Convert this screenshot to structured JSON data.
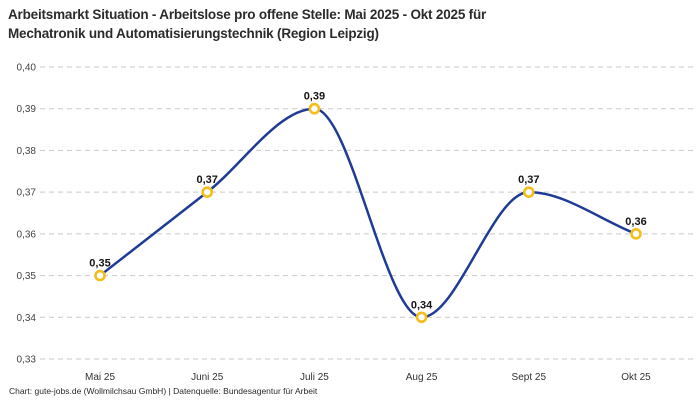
{
  "header": {
    "title_line1": "Arbeitsmarkt Situation - Arbeitslose pro offene Stelle: Mai 2025 - Okt 2025 für",
    "title_line2": "Mechatronik und Automatisierungstechnik (Region Leipzig)"
  },
  "footer": {
    "credit": "Chart: gute-jobs.de (Wollmilchsau GmbH) | Datenquelle: Bundesagentur für Arbeit"
  },
  "chart_data": {
    "type": "line",
    "title": "Arbeitsmarkt Situation - Arbeitslose pro offene Stelle: Mai 2025 - Okt 2025 für Mechatronik und Automatisierungstechnik (Region Leipzig)",
    "categories": [
      "Mai 25",
      "Juni 25",
      "Juli 25",
      "Aug 25",
      "Sept 25",
      "Okt 25"
    ],
    "values": [
      0.35,
      0.37,
      0.39,
      0.34,
      0.37,
      0.36
    ],
    "value_labels": [
      "0,35",
      "0,37",
      "0,39",
      "0,34",
      "0,37",
      "0,36"
    ],
    "xlabel": "",
    "ylabel": "",
    "ylim": [
      0.33,
      0.4
    ],
    "ytick_step": 0.01,
    "ytick_labels": [
      "0,33",
      "0,34",
      "0,35",
      "0,36",
      "0,37",
      "0,38",
      "0,39",
      "0,40"
    ],
    "grid": "horizontal-dashed",
    "legend": "none",
    "smooth": "monotone-cubic",
    "colors": {
      "line": "#1e3c96",
      "marker_ring": "#f5bd1a",
      "marker_fill": "#ffffff",
      "gridline": "#c9c9c9",
      "tick_label": "#444444",
      "data_label": "#141414"
    }
  }
}
